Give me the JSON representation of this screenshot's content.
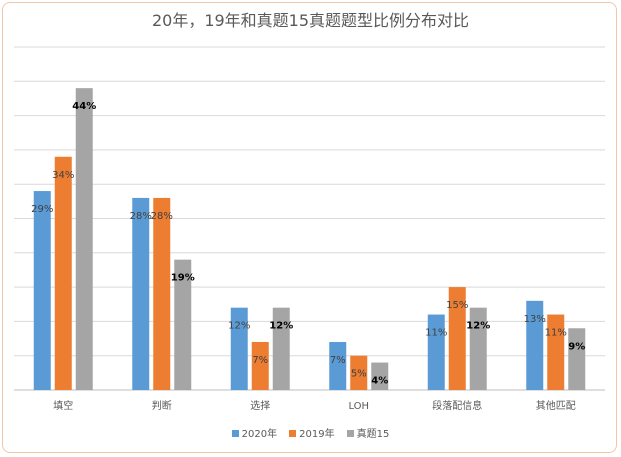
{
  "chart_data": {
    "type": "bar",
    "title": "20年，19年和真题15真题题型比例分布对比",
    "categories": [
      "填空",
      "判断",
      "选择",
      "LOH",
      "段落配信息",
      "其他匹配"
    ],
    "series": [
      {
        "name": "2020年",
        "color": "#5b9bd5",
        "values": [
          29,
          28,
          12,
          7,
          11,
          13
        ],
        "label_color": "#404040"
      },
      {
        "name": "2019年",
        "color": "#ed7d31",
        "values": [
          34,
          28,
          7,
          5,
          15,
          11
        ],
        "label_color": "#404040"
      },
      {
        "name": "真题15",
        "color": "#a5a5a5",
        "values": [
          44,
          19,
          12,
          4,
          12,
          9
        ],
        "label_color": "#000000"
      }
    ],
    "ylim": [
      0,
      50
    ],
    "grid": true,
    "legend_position": "bottom"
  }
}
